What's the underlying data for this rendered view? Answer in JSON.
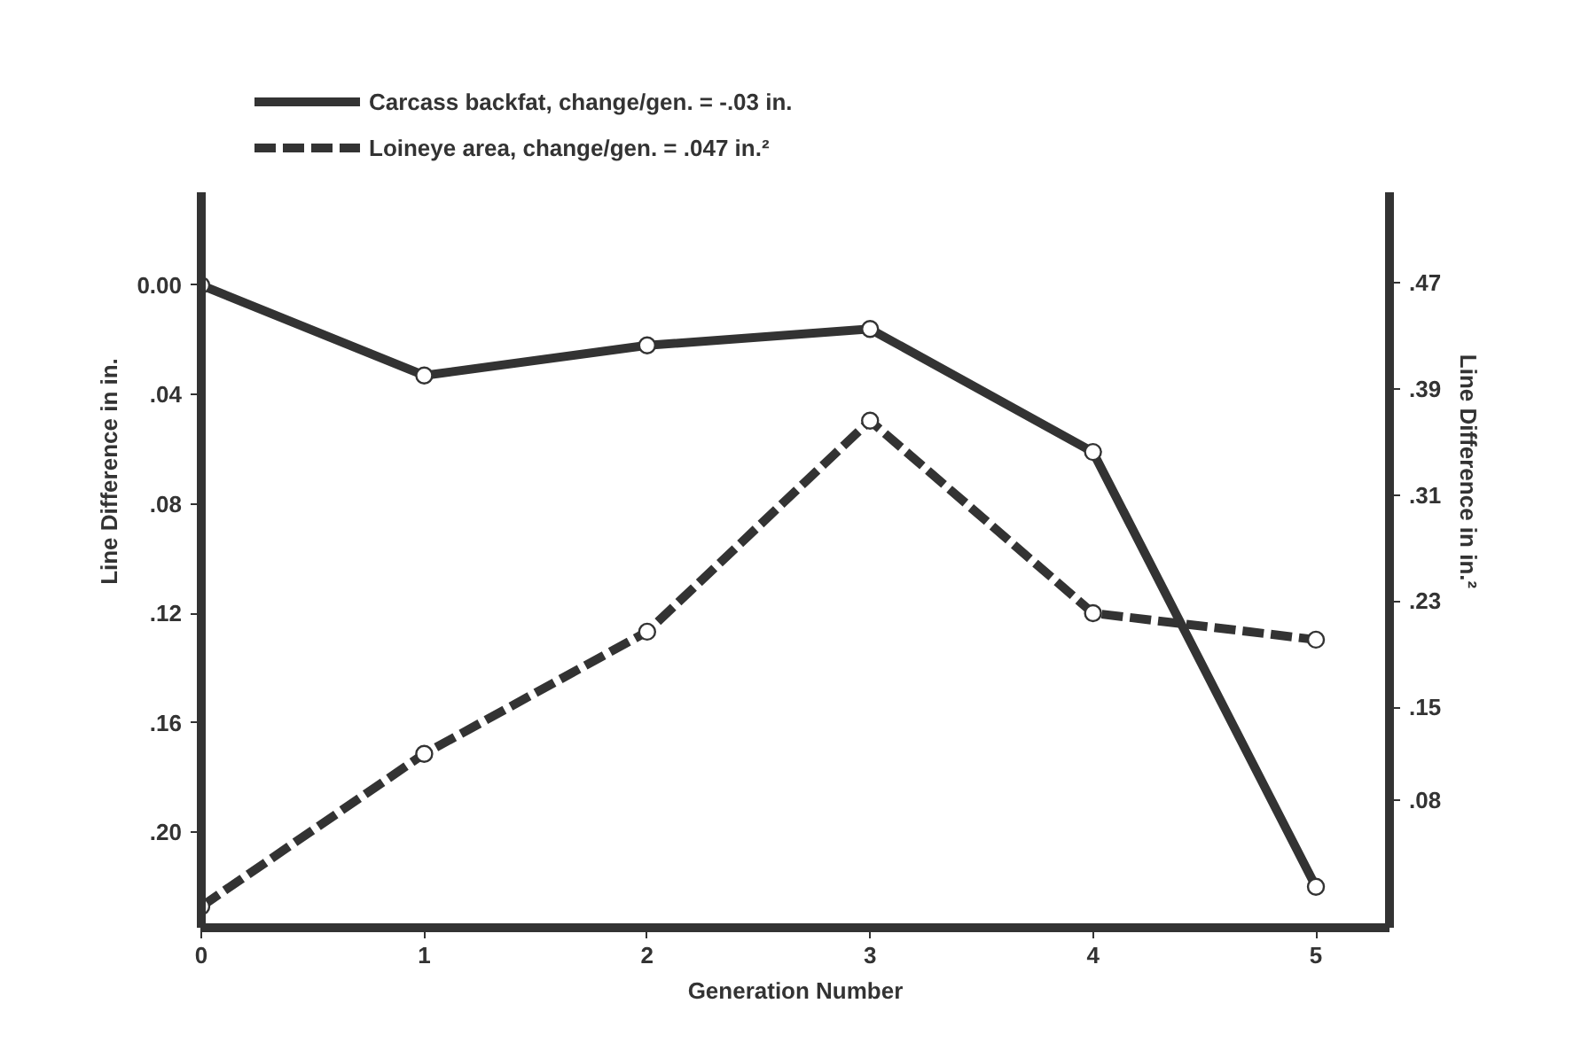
{
  "chart_data": {
    "type": "line",
    "xlabel": "Generation Number",
    "ylabel": "Line Difference in in.",
    "y2label": "Line Difference in in.²",
    "x": [
      0,
      1,
      2,
      3,
      4,
      5
    ],
    "series": [
      {
        "name": "Carcass backfat, change/gen. = -.03 in.",
        "color": "#333333",
        "values": [
          0.0,
          0.033,
          0.022,
          0.016,
          0.061,
          0.22
        ],
        "line_style": "solid"
      },
      {
        "name": "Loineye area, change/gen. = .047 in.²",
        "color": "#333333",
        "values": [
          0.0,
          0.115,
          0.207,
          0.366,
          0.221,
          0.201
        ],
        "line_style": "dashed",
        "axis": "y2"
      }
    ],
    "xlim": [
      0,
      5.33
    ],
    "xticks": [
      0,
      1,
      2,
      3,
      4,
      5
    ],
    "ylim": [
      0.235,
      -0.034
    ],
    "yticks": [
      {
        "value": 0,
        "label": "0.00"
      },
      {
        "value": 0.04,
        "label": ".04"
      },
      {
        "value": 0.08,
        "label": ".08"
      },
      {
        "value": 0.12,
        "label": ".12"
      },
      {
        "value": 0.16,
        "label": ".16"
      },
      {
        "value": 0.2,
        "label": ".20"
      }
    ],
    "y2lim": [
      -0.016,
      0.538
    ],
    "y2ticks": [
      {
        "value": 0.47,
        "label": ".47"
      },
      {
        "value": 0.39,
        "label": ".39"
      },
      {
        "value": 0.31,
        "label": ".31"
      },
      {
        "value": 0.23,
        "label": ".23"
      },
      {
        "value": 0.15,
        "label": ".15"
      },
      {
        "value": 0.08,
        "label": ".08"
      }
    ],
    "marker": "circle",
    "grid": false,
    "legend": "top"
  }
}
